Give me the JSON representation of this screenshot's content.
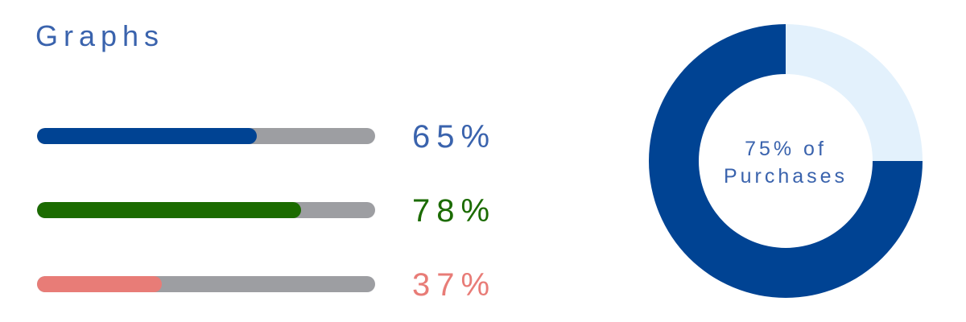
{
  "title": "Graphs",
  "chart_data": [
    {
      "type": "bar",
      "orientation": "horizontal",
      "bars": [
        {
          "label": "65%",
          "value": 65,
          "max": 100,
          "color": "#004393"
        },
        {
          "label": "78%",
          "value": 78,
          "max": 100,
          "color": "#1b6b00"
        },
        {
          "label": "37%",
          "value": 37,
          "max": 100,
          "color": "#e87c77"
        }
      ],
      "track_color": "#9d9ea2",
      "label_colors": [
        "#3a63ad",
        "#1b6b00",
        "#e87c77"
      ]
    },
    {
      "type": "pie",
      "variant": "donut",
      "values": [
        75,
        25
      ],
      "colors": [
        "#004393",
        "#e3f1fc"
      ],
      "center_label_lines": [
        "75% of",
        "Purchases"
      ]
    }
  ]
}
